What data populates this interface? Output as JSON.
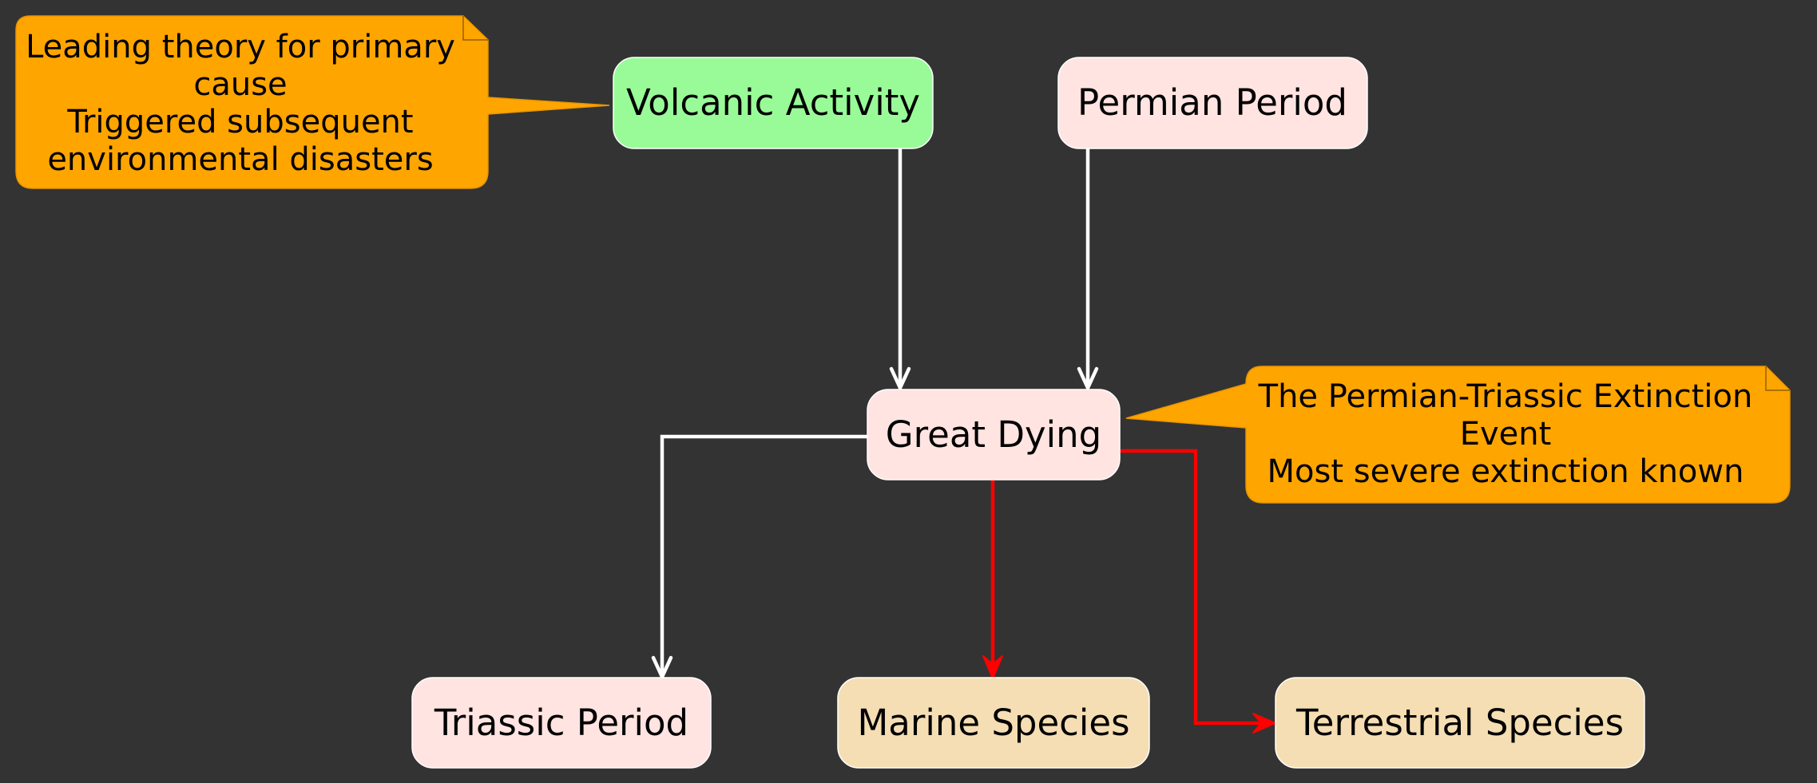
{
  "colors": {
    "background": "#333333",
    "period_fill": "#ffe4e1",
    "cause_fill": "#98fb98",
    "species_fill": "#f5deb3",
    "note_fill": "#ffa500",
    "note_border": "#e89500",
    "edge_default": "#ffffff",
    "edge_impact": "#ff0000"
  },
  "nodes": {
    "volcanic_activity": "Volcanic Activity",
    "permian_period": "Permian Period",
    "great_dying": "Great Dying",
    "triassic_period": "Triassic Period",
    "marine_species": "Marine Species",
    "terrestrial_species": "Terrestrial Species"
  },
  "notes": {
    "volcanic": {
      "lines": [
        "Leading theory for primary",
        "cause",
        "Triggered subsequent",
        "environmental disasters"
      ]
    },
    "great_dying": {
      "lines": [
        "The Permian-Triassic Extinction",
        "Event",
        "Most severe extinction known"
      ]
    }
  },
  "edges": [
    {
      "from": "Volcanic Activity",
      "to": "Great Dying",
      "color": "white"
    },
    {
      "from": "Permian Period",
      "to": "Great Dying",
      "color": "white"
    },
    {
      "from": "Great Dying",
      "to": "Triassic Period",
      "color": "white"
    },
    {
      "from": "Great Dying",
      "to": "Marine Species",
      "color": "red"
    },
    {
      "from": "Great Dying",
      "to": "Terrestrial Species",
      "color": "red"
    }
  ]
}
